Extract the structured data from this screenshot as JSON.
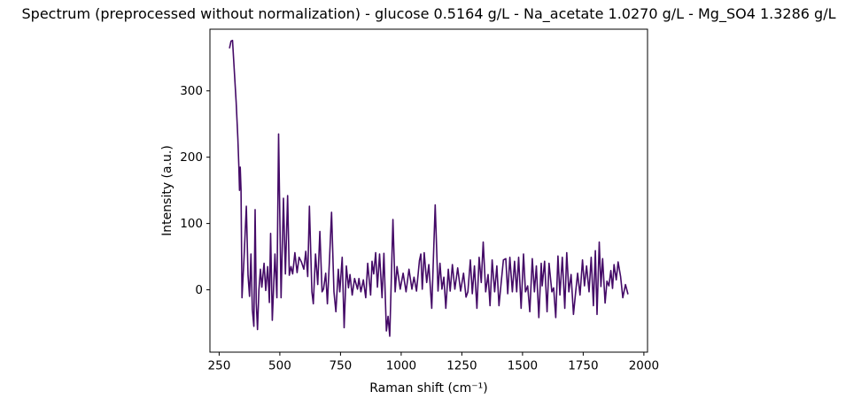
{
  "figure": {
    "background": "#ffffff"
  },
  "chart_data": {
    "type": "line",
    "title": "Spectrum (preprocessed without normalization) - glucose 0.5164 g/L - Na_acetate 1.0270 g/L - Mg_SO4 1.3286 g/L",
    "xlabel": "Raman shift (cm⁻¹)",
    "ylabel": "Intensity (a.u.)",
    "xlim": [
      212,
      2015
    ],
    "ylim": [
      -94,
      393
    ],
    "xticks": [
      250,
      500,
      750,
      1000,
      1250,
      1500,
      1750,
      2000
    ],
    "yticks": [
      0,
      100,
      200,
      300
    ],
    "grid": false,
    "legend": false,
    "line_color": "#440a67",
    "axis_color": "#000000",
    "series": [
      {
        "name": "spectrum",
        "points": [
          [
            293,
            365
          ],
          [
            299,
            375
          ],
          [
            305,
            376
          ],
          [
            320,
            283
          ],
          [
            327,
            229
          ],
          [
            331,
            188
          ],
          [
            334,
            150
          ],
          [
            337,
            185
          ],
          [
            340,
            151
          ],
          [
            344,
            -12
          ],
          [
            352,
            45
          ],
          [
            362,
            126
          ],
          [
            369,
            22
          ],
          [
            375,
            -10
          ],
          [
            381,
            54
          ],
          [
            387,
            -30
          ],
          [
            393,
            -55
          ],
          [
            398,
            121
          ],
          [
            403,
            -20
          ],
          [
            408,
            -60
          ],
          [
            414,
            0
          ],
          [
            420,
            31
          ],
          [
            426,
            4
          ],
          [
            435,
            40
          ],
          [
            442,
            -1
          ],
          [
            450,
            35
          ],
          [
            457,
            -19
          ],
          [
            462,
            85
          ],
          [
            469,
            -46
          ],
          [
            480,
            54
          ],
          [
            488,
            -12
          ],
          [
            495,
            235
          ],
          [
            505,
            -12
          ],
          [
            515,
            138
          ],
          [
            523,
            24
          ],
          [
            532,
            142
          ],
          [
            539,
            22
          ],
          [
            546,
            35
          ],
          [
            553,
            24
          ],
          [
            562,
            56
          ],
          [
            571,
            26
          ],
          [
            579,
            49
          ],
          [
            589,
            42
          ],
          [
            599,
            31
          ],
          [
            607,
            58
          ],
          [
            615,
            20
          ],
          [
            622,
            126
          ],
          [
            632,
            -3
          ],
          [
            638,
            -21
          ],
          [
            647,
            54
          ],
          [
            656,
            8
          ],
          [
            665,
            88
          ],
          [
            674,
            -3
          ],
          [
            680,
            1
          ],
          [
            689,
            25
          ],
          [
            696,
            -21
          ],
          [
            705,
            49
          ],
          [
            713,
            117
          ],
          [
            723,
            -3
          ],
          [
            731,
            -33
          ],
          [
            741,
            31
          ],
          [
            747,
            -3
          ],
          [
            757,
            49
          ],
          [
            765,
            -57
          ],
          [
            774,
            36
          ],
          [
            783,
            3
          ],
          [
            789,
            23
          ],
          [
            798,
            -8
          ],
          [
            808,
            17
          ],
          [
            820,
            1
          ],
          [
            826,
            17
          ],
          [
            834,
            -3
          ],
          [
            844,
            15
          ],
          [
            854,
            -12
          ],
          [
            862,
            40
          ],
          [
            874,
            -8
          ],
          [
            880,
            43
          ],
          [
            887,
            24
          ],
          [
            895,
            56
          ],
          [
            902,
            4
          ],
          [
            911,
            54
          ],
          [
            921,
            -12
          ],
          [
            929,
            55
          ],
          [
            939,
            -62
          ],
          [
            946,
            -40
          ],
          [
            953,
            -70
          ],
          [
            966,
            106
          ],
          [
            975,
            -3
          ],
          [
            983,
            35
          ],
          [
            996,
            1
          ],
          [
            1008,
            25
          ],
          [
            1020,
            -3
          ],
          [
            1032,
            31
          ],
          [
            1044,
            1
          ],
          [
            1053,
            19
          ],
          [
            1063,
            -2
          ],
          [
            1075,
            44
          ],
          [
            1081,
            54
          ],
          [
            1087,
            1
          ],
          [
            1095,
            56
          ],
          [
            1105,
            11
          ],
          [
            1114,
            38
          ],
          [
            1126,
            -28
          ],
          [
            1140,
            128
          ],
          [
            1152,
            -2
          ],
          [
            1160,
            40
          ],
          [
            1168,
            1
          ],
          [
            1176,
            19
          ],
          [
            1184,
            -28
          ],
          [
            1194,
            31
          ],
          [
            1202,
            -2
          ],
          [
            1211,
            38
          ],
          [
            1221,
            1
          ],
          [
            1233,
            33
          ],
          [
            1245,
            -2
          ],
          [
            1257,
            25
          ],
          [
            1267,
            -11
          ],
          [
            1275,
            -3
          ],
          [
            1285,
            45
          ],
          [
            1293,
            -6
          ],
          [
            1302,
            36
          ],
          [
            1312,
            -28
          ],
          [
            1321,
            49
          ],
          [
            1330,
            11
          ],
          [
            1338,
            72
          ],
          [
            1348,
            -3
          ],
          [
            1358,
            23
          ],
          [
            1366,
            -24
          ],
          [
            1375,
            45
          ],
          [
            1385,
            -3
          ],
          [
            1394,
            36
          ],
          [
            1403,
            -24
          ],
          [
            1412,
            11
          ],
          [
            1421,
            45
          ],
          [
            1431,
            47
          ],
          [
            1439,
            -6
          ],
          [
            1448,
            49
          ],
          [
            1458,
            -3
          ],
          [
            1467,
            43
          ],
          [
            1476,
            -3
          ],
          [
            1484,
            49
          ],
          [
            1494,
            -28
          ],
          [
            1504,
            54
          ],
          [
            1512,
            -3
          ],
          [
            1521,
            6
          ],
          [
            1530,
            -33
          ],
          [
            1540,
            47
          ],
          [
            1549,
            -3
          ],
          [
            1557,
            36
          ],
          [
            1567,
            -42
          ],
          [
            1577,
            40
          ],
          [
            1581,
            6
          ],
          [
            1591,
            43
          ],
          [
            1601,
            -33
          ],
          [
            1609,
            40
          ],
          [
            1621,
            -3
          ],
          [
            1628,
            3
          ],
          [
            1637,
            -42
          ],
          [
            1646,
            51
          ],
          [
            1654,
            -8
          ],
          [
            1664,
            49
          ],
          [
            1674,
            -28
          ],
          [
            1682,
            56
          ],
          [
            1691,
            -3
          ],
          [
            1700,
            23
          ],
          [
            1710,
            -37
          ],
          [
            1719,
            -3
          ],
          [
            1727,
            25
          ],
          [
            1737,
            -8
          ],
          [
            1747,
            45
          ],
          [
            1755,
            6
          ],
          [
            1764,
            36
          ],
          [
            1774,
            -3
          ],
          [
            1783,
            49
          ],
          [
            1792,
            -24
          ],
          [
            1800,
            59
          ],
          [
            1807,
            -37
          ],
          [
            1816,
            72
          ],
          [
            1823,
            5
          ],
          [
            1830,
            47
          ],
          [
            1840,
            -20
          ],
          [
            1848,
            13
          ],
          [
            1856,
            6
          ],
          [
            1864,
            29
          ],
          [
            1871,
            2
          ],
          [
            1877,
            38
          ],
          [
            1886,
            15
          ],
          [
            1894,
            42
          ],
          [
            1904,
            20
          ],
          [
            1913,
            -12
          ],
          [
            1924,
            8
          ],
          [
            1934,
            -6
          ]
        ]
      }
    ]
  }
}
